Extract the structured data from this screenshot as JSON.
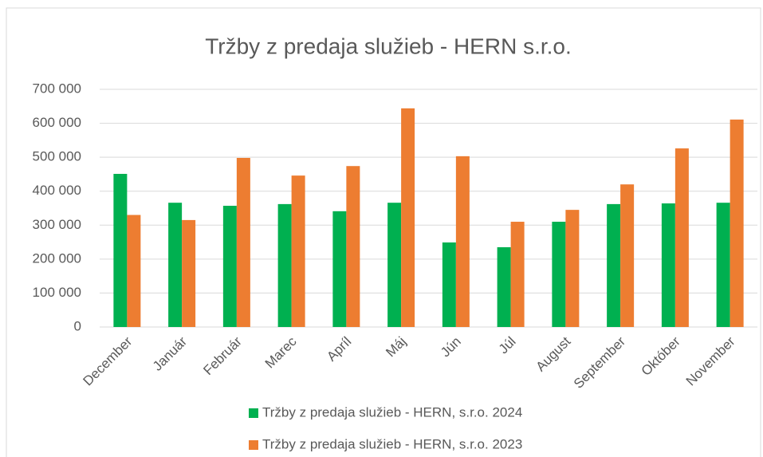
{
  "chart_data": {
    "type": "bar",
    "title": "Tržby z predaja služieb - HERN s.r.o.",
    "categories": [
      "December",
      "Január",
      "Február",
      "Marec",
      "Apríl",
      "Máj",
      "Jún",
      "Júl",
      "August",
      "September",
      "Október",
      "November"
    ],
    "series": [
      {
        "name": "Tržby z predaja služieb - HERN, s.r.o. 2024",
        "color": "#00b050",
        "values": [
          451000,
          366000,
          357000,
          362000,
          341000,
          366000,
          249000,
          235000,
          310000,
          362000,
          364000,
          366000
        ]
      },
      {
        "name": "Tržby z predaja služieb - HERN, s.r.o. 2023",
        "color": "#ed7d31",
        "values": [
          330000,
          315000,
          498000,
          446000,
          474000,
          644000,
          503000,
          310000,
          345000,
          420000,
          526000,
          611000
        ]
      }
    ],
    "ylim": [
      0,
      700000
    ],
    "yticks": [
      0,
      {
        "value": 100000,
        "label": "100 000"
      },
      {
        "value": 200000,
        "label": "200 000"
      },
      {
        "value": 300000,
        "label": "300 000"
      },
      {
        "value": 400000,
        "label": "400 000"
      },
      {
        "value": 500000,
        "label": "500 000"
      },
      {
        "value": 600000,
        "label": "600 000"
      },
      {
        "value": 700000,
        "label": "700 000"
      }
    ],
    "grid": true,
    "legend": "bottom"
  }
}
